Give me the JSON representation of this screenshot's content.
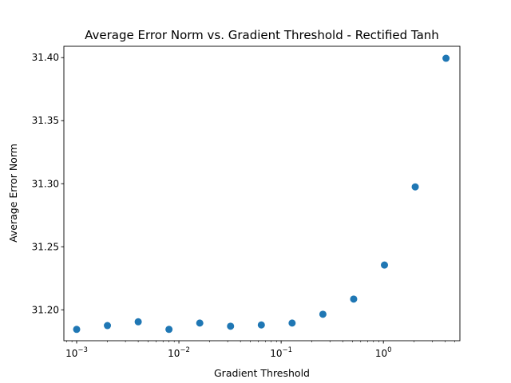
{
  "chart_data": {
    "type": "scatter",
    "title": "Average Error Norm vs. Gradient Threshold - Rectified Tanh",
    "xlabel": "Gradient Threshold",
    "ylabel": "Average Error Norm",
    "xscale": "log",
    "xlim": [
      0.00075,
      5.6
    ],
    "ylim": [
      31.1755,
      31.409
    ],
    "grid": false,
    "legend": "none",
    "x_ticks": [
      {
        "value": 0.001,
        "label": "10^-3"
      },
      {
        "value": 0.01,
        "label": "10^-2"
      },
      {
        "value": 0.1,
        "label": "10^-1"
      },
      {
        "value": 1,
        "label": "10^0"
      }
    ],
    "y_ticks": [
      {
        "value": 31.2,
        "label": "31.20"
      },
      {
        "value": 31.25,
        "label": "31.25"
      },
      {
        "value": 31.3,
        "label": "31.30"
      },
      {
        "value": 31.35,
        "label": "31.35"
      },
      {
        "value": 31.4,
        "label": "31.40"
      }
    ],
    "series": [
      {
        "color": "#1f77b4",
        "x": [
          0.001,
          0.002,
          0.004,
          0.008,
          0.016,
          0.032,
          0.064,
          0.128,
          0.256,
          0.512,
          1.024,
          2.048,
          4.096
        ],
        "y": [
          31.1845,
          31.1875,
          31.1905,
          31.1845,
          31.1895,
          31.187,
          31.188,
          31.1895,
          31.1965,
          31.2085,
          31.2355,
          31.2975,
          31.3995
        ]
      }
    ]
  }
}
